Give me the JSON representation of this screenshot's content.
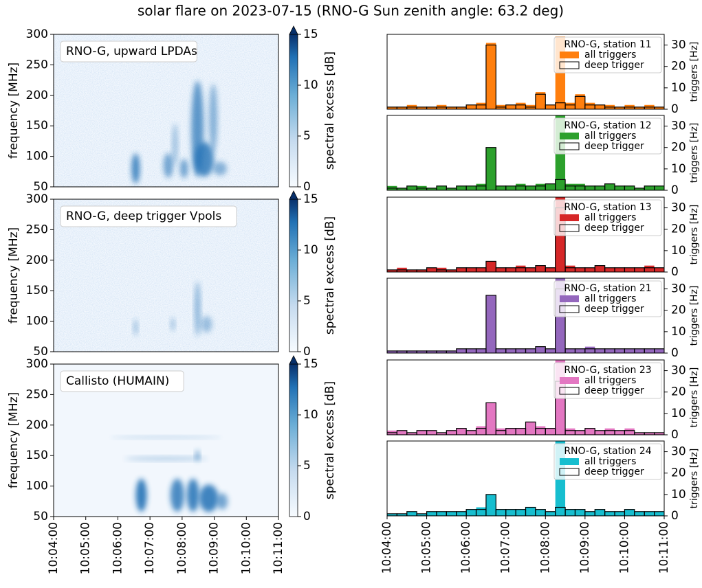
{
  "title": "solar flare on 2023-07-15 (RNO-G Sun zenith angle: 63.2 deg)",
  "chart_data": [
    {
      "type": "heatmap",
      "label": "RNO-G, upward LPDAs",
      "ylabel": "frequency [MHz]",
      "ylim": [
        50,
        300
      ],
      "yticks": [
        50,
        100,
        150,
        200,
        250,
        300
      ],
      "colorbar": {
        "label": "spectral excess [dB]",
        "lim": [
          0,
          15
        ],
        "ticks": [
          0,
          5,
          10,
          15
        ],
        "extend": "max"
      }
    },
    {
      "type": "heatmap",
      "label": "RNO-G, deep trigger Vpols",
      "ylabel": "frequency [MHz]",
      "ylim": [
        50,
        300
      ],
      "yticks": [
        50,
        100,
        150,
        200,
        250,
        300
      ],
      "colorbar": {
        "label": "spectral excess [dB]",
        "lim": [
          0,
          15
        ],
        "ticks": [
          0,
          5,
          10,
          15
        ],
        "extend": "max"
      }
    },
    {
      "type": "heatmap",
      "label": "Callisto (HUMAIN)",
      "ylabel": "frequency [MHz]",
      "ylim": [
        50,
        300
      ],
      "yticks": [
        50,
        100,
        150,
        200,
        250,
        300
      ],
      "xlim": [
        "10:04:00",
        "10:11:00"
      ],
      "xticks": [
        "10:04:00",
        "10:05:00",
        "10:06:00",
        "10:07:00",
        "10:08:00",
        "10:09:00",
        "10:10:00",
        "10:11:00"
      ],
      "colorbar": {
        "label": "spectral excess [dB]",
        "lim": [
          0,
          15
        ],
        "ticks": [
          0,
          5,
          10,
          15
        ],
        "extend": "max"
      }
    },
    {
      "type": "histogram",
      "title": "RNO-G, station 11",
      "ylabel": "triggers [Hz]",
      "legend": "upper right",
      "bins": [
        "10:04:00",
        "10:04:15",
        "10:04:30",
        "10:04:45",
        "10:05:00",
        "10:05:15",
        "10:05:30",
        "10:05:45",
        "10:06:00",
        "10:06:15",
        "10:06:30",
        "10:06:45",
        "10:07:00",
        "10:07:15",
        "10:07:30",
        "10:07:45",
        "10:08:00",
        "10:08:15",
        "10:08:30",
        "10:08:45",
        "10:09:00",
        "10:09:15",
        "10:09:30",
        "10:09:45",
        "10:10:00",
        "10:10:15",
        "10:10:30",
        "10:10:45",
        "10:11:00"
      ],
      "xlim": [
        "10:04:00",
        "10:11:00"
      ],
      "ylim": [
        0,
        35
      ],
      "yticks": [
        0,
        10,
        20,
        30
      ],
      "series": [
        {
          "name": "all triggers",
          "color": "#ff7f0e",
          "values": [
            1,
            1,
            2,
            1,
            1,
            2,
            1,
            1,
            2,
            3,
            31,
            2,
            2,
            3,
            2,
            8,
            2,
            34,
            3,
            7,
            3,
            2,
            2,
            1,
            2,
            1,
            2,
            1
          ]
        },
        {
          "name": "deep trigger",
          "color": "#000000",
          "values": [
            1,
            1,
            1,
            1,
            1,
            1,
            1,
            1,
            2,
            2,
            30,
            1,
            2,
            2,
            1,
            7,
            2,
            3,
            2,
            6,
            2,
            2,
            1,
            1,
            1,
            1,
            1,
            1
          ]
        }
      ]
    },
    {
      "type": "histogram",
      "title": "RNO-G, station 12",
      "ylabel": "triggers [Hz]",
      "legend": "upper right",
      "bins": [
        "10:04:00",
        "10:04:15",
        "10:04:30",
        "10:04:45",
        "10:05:00",
        "10:05:15",
        "10:05:30",
        "10:05:45",
        "10:06:00",
        "10:06:15",
        "10:06:30",
        "10:06:45",
        "10:07:00",
        "10:07:15",
        "10:07:30",
        "10:07:45",
        "10:08:00",
        "10:08:15",
        "10:08:30",
        "10:08:45",
        "10:09:00",
        "10:09:15",
        "10:09:30",
        "10:09:45",
        "10:10:00",
        "10:10:15",
        "10:10:30",
        "10:10:45",
        "10:11:00"
      ],
      "xlim": [
        "10:04:00",
        "10:11:00"
      ],
      "ylim": [
        0,
        35
      ],
      "yticks": [
        0,
        10,
        20,
        30
      ],
      "series": [
        {
          "name": "all triggers",
          "color": "#2ca02c",
          "values": [
            2,
            1,
            2,
            2,
            1,
            2,
            1,
            2,
            2,
            3,
            20,
            2,
            2,
            3,
            2,
            3,
            3,
            36,
            3,
            3,
            2,
            2,
            3,
            2,
            2,
            1,
            2,
            2
          ]
        },
        {
          "name": "deep trigger",
          "color": "#000000",
          "values": [
            1,
            1,
            2,
            1,
            1,
            2,
            1,
            2,
            2,
            2,
            20,
            2,
            2,
            2,
            2,
            2,
            3,
            5,
            2,
            2,
            2,
            2,
            3,
            2,
            2,
            1,
            2,
            2
          ]
        }
      ]
    },
    {
      "type": "histogram",
      "title": "RNO-G, station 13",
      "ylabel": "triggers [Hz]",
      "legend": "upper right",
      "bins": [
        "10:04:00",
        "10:04:15",
        "10:04:30",
        "10:04:45",
        "10:05:00",
        "10:05:15",
        "10:05:30",
        "10:05:45",
        "10:06:00",
        "10:06:15",
        "10:06:30",
        "10:06:45",
        "10:07:00",
        "10:07:15",
        "10:07:30",
        "10:07:45",
        "10:08:00",
        "10:08:15",
        "10:08:30",
        "10:08:45",
        "10:09:00",
        "10:09:15",
        "10:09:30",
        "10:09:45",
        "10:10:00",
        "10:10:15",
        "10:10:30",
        "10:10:45",
        "10:11:00"
      ],
      "xlim": [
        "10:04:00",
        "10:11:00"
      ],
      "ylim": [
        0,
        35
      ],
      "yticks": [
        0,
        10,
        20,
        30
      ],
      "series": [
        {
          "name": "all triggers",
          "color": "#d62728",
          "values": [
            1,
            2,
            1,
            1,
            2,
            2,
            1,
            2,
            2,
            2,
            5,
            2,
            2,
            3,
            2,
            3,
            2,
            36,
            3,
            2,
            2,
            3,
            2,
            2,
            2,
            2,
            3,
            2
          ]
        },
        {
          "name": "deep trigger",
          "color": "#000000",
          "values": [
            1,
            1,
            1,
            1,
            2,
            1,
            1,
            2,
            2,
            2,
            5,
            2,
            2,
            2,
            2,
            3,
            2,
            30,
            2,
            2,
            2,
            3,
            2,
            2,
            2,
            2,
            2,
            2
          ]
        }
      ]
    },
    {
      "type": "histogram",
      "title": "RNO-G, station 21",
      "ylabel": "triggers [Hz]",
      "legend": "upper right",
      "bins": [
        "10:04:00",
        "10:04:15",
        "10:04:30",
        "10:04:45",
        "10:05:00",
        "10:05:15",
        "10:05:30",
        "10:05:45",
        "10:06:00",
        "10:06:15",
        "10:06:30",
        "10:06:45",
        "10:07:00",
        "10:07:15",
        "10:07:30",
        "10:07:45",
        "10:08:00",
        "10:08:15",
        "10:08:30",
        "10:08:45",
        "10:09:00",
        "10:09:15",
        "10:09:30",
        "10:09:45",
        "10:10:00",
        "10:10:15",
        "10:10:30",
        "10:10:45",
        "10:11:00"
      ],
      "xlim": [
        "10:04:00",
        "10:11:00"
      ],
      "ylim": [
        0,
        35
      ],
      "yticks": [
        0,
        10,
        20,
        30
      ],
      "series": [
        {
          "name": "all triggers",
          "color": "#9467bd",
          "values": [
            1,
            1,
            1,
            1,
            1,
            1,
            1,
            2,
            2,
            2,
            27,
            2,
            2,
            2,
            2,
            3,
            2,
            36,
            2,
            2,
            3,
            2,
            2,
            2,
            2,
            2,
            2,
            2
          ]
        },
        {
          "name": "deep trigger",
          "color": "#000000",
          "values": [
            1,
            1,
            1,
            1,
            1,
            1,
            1,
            2,
            2,
            2,
            27,
            2,
            2,
            2,
            2,
            3,
            2,
            30,
            2,
            2,
            2,
            2,
            2,
            2,
            2,
            2,
            2,
            2
          ]
        }
      ]
    },
    {
      "type": "histogram",
      "title": "RNO-G, station 23",
      "ylabel": "triggers [Hz]",
      "legend": "upper right",
      "bins": [
        "10:04:00",
        "10:04:15",
        "10:04:30",
        "10:04:45",
        "10:05:00",
        "10:05:15",
        "10:05:30",
        "10:05:45",
        "10:06:00",
        "10:06:15",
        "10:06:30",
        "10:06:45",
        "10:07:00",
        "10:07:15",
        "10:07:30",
        "10:07:45",
        "10:08:00",
        "10:08:15",
        "10:08:30",
        "10:08:45",
        "10:09:00",
        "10:09:15",
        "10:09:30",
        "10:09:45",
        "10:10:00",
        "10:10:15",
        "10:10:30",
        "10:10:45",
        "10:11:00"
      ],
      "xlim": [
        "10:04:00",
        "10:11:00"
      ],
      "ylim": [
        0,
        35
      ],
      "yticks": [
        0,
        10,
        20,
        30
      ],
      "series": [
        {
          "name": "all triggers",
          "color": "#e377c2",
          "values": [
            2,
            2,
            1,
            2,
            2,
            1,
            2,
            3,
            2,
            4,
            15,
            3,
            3,
            3,
            6,
            4,
            3,
            36,
            3,
            2,
            3,
            2,
            3,
            2,
            3,
            1,
            1,
            1
          ]
        },
        {
          "name": "deep trigger",
          "color": "#000000",
          "values": [
            1,
            2,
            1,
            2,
            2,
            1,
            2,
            3,
            2,
            3,
            15,
            2,
            3,
            3,
            6,
            3,
            3,
            25,
            2,
            2,
            3,
            2,
            2,
            2,
            2,
            1,
            1,
            1
          ]
        }
      ]
    },
    {
      "type": "histogram",
      "title": "RNO-G, station 24",
      "ylabel": "triggers [Hz]",
      "legend": "upper right",
      "bins": [
        "10:04:00",
        "10:04:15",
        "10:04:30",
        "10:04:45",
        "10:05:00",
        "10:05:15",
        "10:05:30",
        "10:05:45",
        "10:06:00",
        "10:06:15",
        "10:06:30",
        "10:06:45",
        "10:07:00",
        "10:07:15",
        "10:07:30",
        "10:07:45",
        "10:08:00",
        "10:08:15",
        "10:08:30",
        "10:08:45",
        "10:09:00",
        "10:09:15",
        "10:09:30",
        "10:09:45",
        "10:10:00",
        "10:10:15",
        "10:10:30",
        "10:10:45",
        "10:11:00"
      ],
      "xlim": [
        "10:04:00",
        "10:11:00"
      ],
      "ylim": [
        0,
        35
      ],
      "yticks": [
        0,
        10,
        20,
        30
      ],
      "xticks": [
        "10:04:00",
        "10:05:00",
        "10:06:00",
        "10:07:00",
        "10:08:00",
        "10:09:00",
        "10:10:00",
        "10:11:00"
      ],
      "series": [
        {
          "name": "all triggers",
          "color": "#17becf",
          "values": [
            1,
            1,
            2,
            1,
            2,
            2,
            2,
            2,
            3,
            4,
            10,
            3,
            3,
            3,
            4,
            3,
            2,
            36,
            3,
            3,
            2,
            3,
            2,
            2,
            3,
            2,
            2,
            2
          ]
        },
        {
          "name": "deep trigger",
          "color": "#000000",
          "values": [
            1,
            1,
            2,
            1,
            2,
            2,
            2,
            2,
            3,
            3,
            10,
            3,
            3,
            3,
            4,
            3,
            2,
            4,
            3,
            3,
            2,
            3,
            2,
            2,
            3,
            2,
            2,
            2
          ]
        }
      ]
    }
  ]
}
